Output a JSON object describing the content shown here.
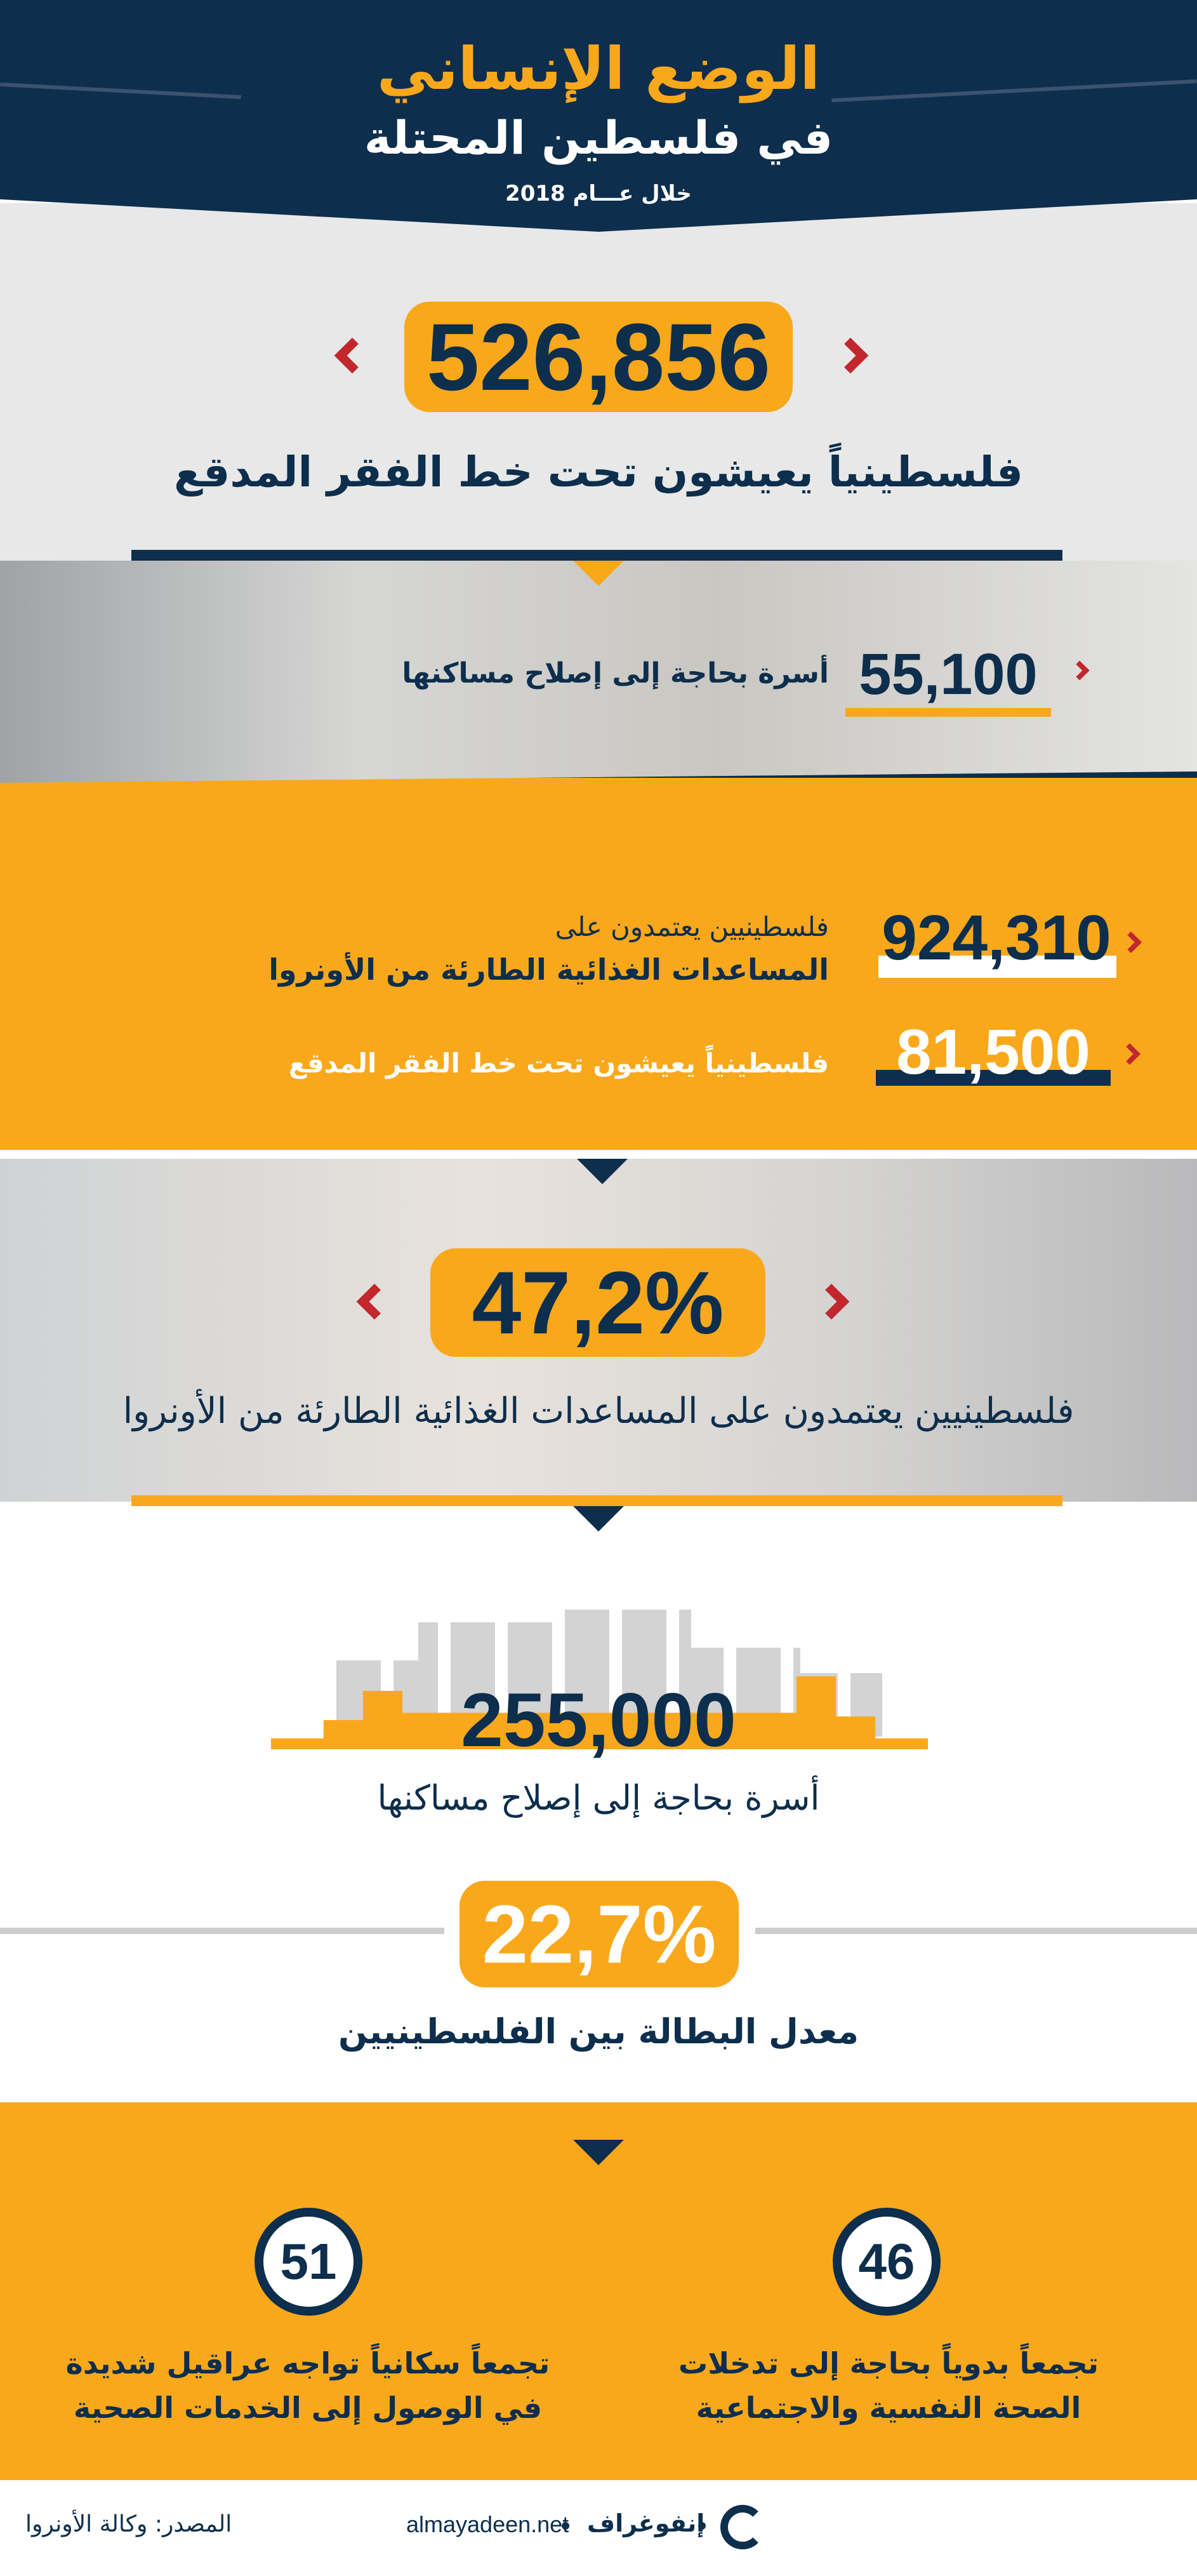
{
  "header": {
    "title": "الوضع الإنساني",
    "subtitle": "في فلسطين المحتلة",
    "year": "خلال عـــام 2018"
  },
  "stats": {
    "poverty": {
      "value": "526,856",
      "label": "فلسطينياً يعيشون تحت خط الفقر المدقع"
    },
    "housing_small": {
      "value": "55,100",
      "label": "أسرة بحاجة إلى إصلاح مساكنها"
    },
    "food_aid": {
      "value": "924,310",
      "label_line1": "فلسطينيين يعتمدون على",
      "label_line2": "المساعدات الغذائية الطارئة من الأونروا"
    },
    "poverty_small": {
      "value": "81,500",
      "label": "فلسطينياً يعيشون تحت خط الفقر المدقع"
    },
    "food_aid_pct": {
      "value": "47,2%",
      "label": "فلسطينيين يعتمدون على المساعدات الغذائية الطارئة من الأونروا"
    },
    "housing": {
      "value": "255,000",
      "label": "أسرة بحاجة إلى إصلاح مساكنها"
    },
    "unemployment": {
      "value": "22,7%",
      "label": "معدل البطالة بين الفلسطينيين"
    },
    "health": {
      "value": "51",
      "label_line1": "تجمعاً سكانياً تواجه عراقيل شديدة",
      "label_line2": "في الوصول إلى الخدمات الصحية"
    },
    "psych": {
      "value": "46",
      "label_line1": "تجمعاً بدوياً بحاجة إلى تدخلات",
      "label_line2": "الصحة النفسية والاجتماعية"
    }
  },
  "footer": {
    "source": "المصدر: وكالة الأونروا",
    "brand": "إنفوغراف",
    "site": "almayadeen.net"
  },
  "colors": {
    "navy": "#0d2e4c",
    "orange": "#f9a81c",
    "red": "#c1272d",
    "gray": "#e8e8e8"
  }
}
